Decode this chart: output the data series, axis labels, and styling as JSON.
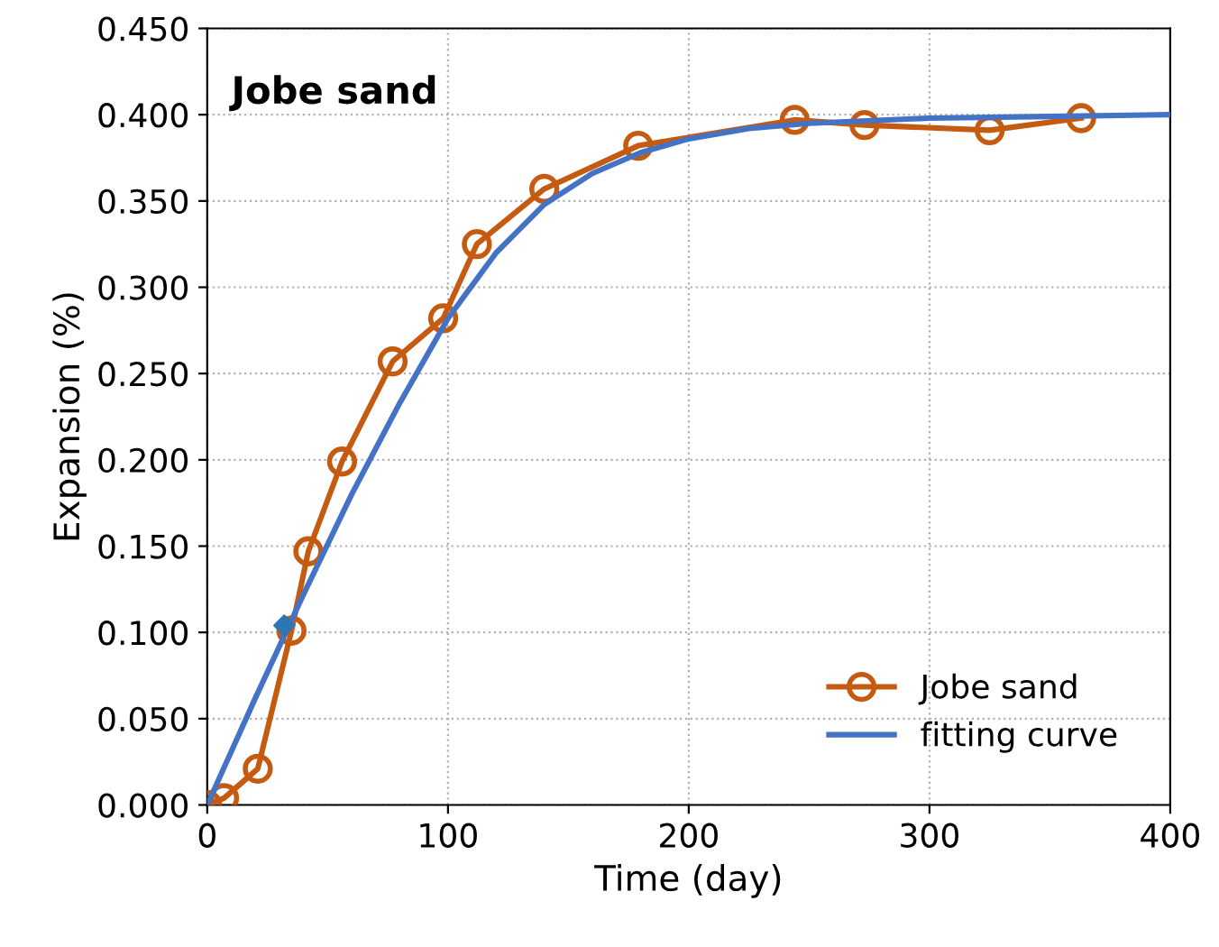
{
  "chart_data": {
    "type": "line",
    "title": "Jobe sand",
    "xlabel": "Time (day)",
    "ylabel": "Expansion (%)",
    "xlim": [
      0,
      400
    ],
    "xticks": [
      0,
      100,
      200,
      300,
      400
    ],
    "ylim": [
      0,
      0.45
    ],
    "yticks": [
      {
        "value": 0,
        "label": "0.000"
      },
      {
        "value": 0.05,
        "label": "0.050"
      },
      {
        "value": 0.1,
        "label": "0.100"
      },
      {
        "value": 0.15,
        "label": "0.150"
      },
      {
        "value": 0.2,
        "label": "0.200"
      },
      {
        "value": 0.25,
        "label": "0.250"
      },
      {
        "value": 0.3,
        "label": "0.300"
      },
      {
        "value": 0.35,
        "label": "0.350"
      },
      {
        "value": 0.4,
        "label": "0.400"
      },
      {
        "value": 0.45,
        "label": "0.450"
      }
    ],
    "grid": true,
    "legend": "bottom right",
    "series": [
      {
        "name": "Jobe sand",
        "color": "#c55a11",
        "marker": "circle",
        "x": [
          0,
          7,
          21,
          35,
          42,
          56,
          77,
          98,
          112,
          140,
          179,
          244,
          273,
          325,
          363
        ],
        "values": [
          0.0,
          0.004,
          0.021,
          0.101,
          0.147,
          0.199,
          0.257,
          0.282,
          0.325,
          0.357,
          0.382,
          0.397,
          0.394,
          0.391,
          0.398
        ]
      },
      {
        "name": "fitting curve",
        "color": "#4472c4",
        "marker": "none",
        "x": [
          0,
          20,
          40,
          60,
          80,
          100,
          120,
          140,
          160,
          180,
          200,
          225,
          250,
          300,
          350,
          400
        ],
        "values": [
          0.0,
          0.062,
          0.122,
          0.18,
          0.233,
          0.282,
          0.32,
          0.348,
          0.366,
          0.378,
          0.386,
          0.392,
          0.395,
          0.398,
          0.399,
          0.4
        ]
      },
      {
        "type": "scatter",
        "color": "#2e75b6",
        "marker": "diamond",
        "x": [
          32
        ],
        "values": [
          0.104
        ]
      }
    ]
  }
}
